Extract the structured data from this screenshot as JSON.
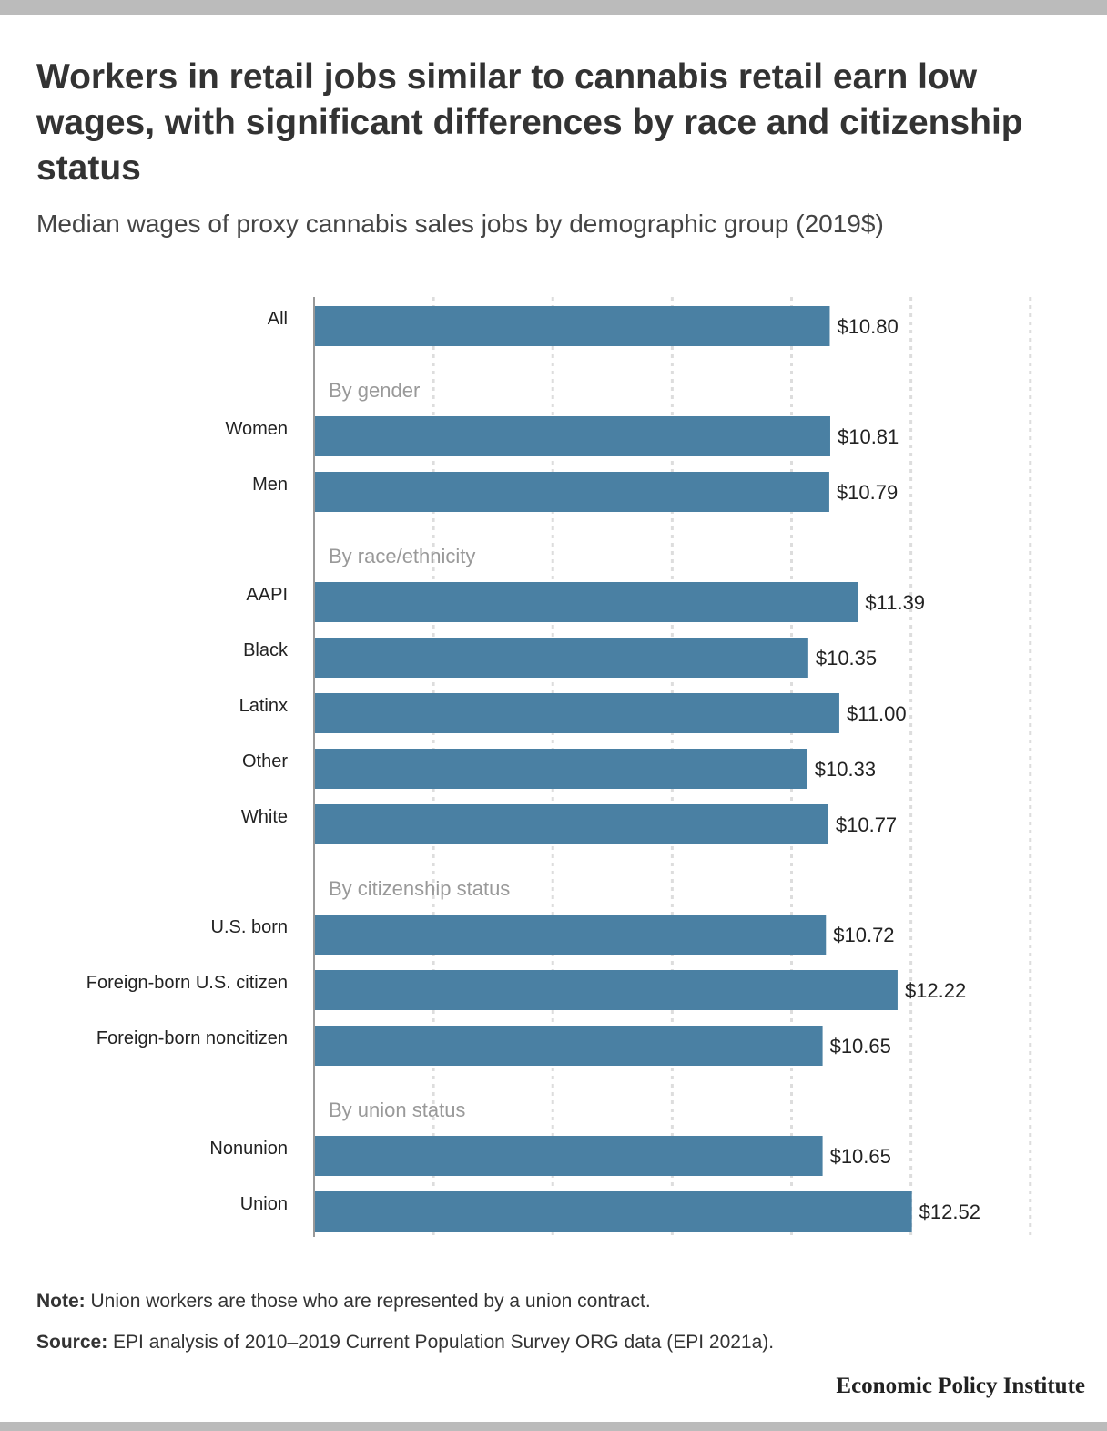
{
  "title": "Workers in retail jobs similar to cannabis retail earn low wages, with significant differences by race and citizenship status",
  "subtitle": "Median wages of proxy cannabis sales jobs by demographic group (2019$)",
  "note_label": "Note:",
  "note_text": " Union workers are those who are represented by a union contract.",
  "source_label": "Source:",
  "source_text": " EPI analysis of 2010–2019 Current Population Survey ORG data (EPI 2021a).",
  "brand": "Economic Policy Institute",
  "colors": {
    "bar": "#4a80a3",
    "group_label": "#999999",
    "grid": "#dddddd",
    "axis": "#999999"
  },
  "chart_data": {
    "type": "bar",
    "orientation": "horizontal",
    "title": "Workers in retail jobs similar to cannabis retail earn low wages, with significant differences by race and citizenship status",
    "subtitle": "Median wages of proxy cannabis sales jobs by demographic group (2019$)",
    "xlim": [
      0,
      15
    ],
    "grid": "vertical dotted",
    "legend": "none",
    "rows": [
      {
        "kind": "bar",
        "label": "All",
        "value": 10.8,
        "value_label": "$10.80"
      },
      {
        "kind": "group",
        "label": "By gender"
      },
      {
        "kind": "bar",
        "label": "Women",
        "value": 10.81,
        "value_label": "$10.81"
      },
      {
        "kind": "bar",
        "label": "Men",
        "value": 10.79,
        "value_label": "$10.79"
      },
      {
        "kind": "group",
        "label": "By race/ethnicity"
      },
      {
        "kind": "bar",
        "label": "AAPI",
        "value": 11.39,
        "value_label": "$11.39"
      },
      {
        "kind": "bar",
        "label": "Black",
        "value": 10.35,
        "value_label": "$10.35"
      },
      {
        "kind": "bar",
        "label": "Latinx",
        "value": 11.0,
        "value_label": "$11.00"
      },
      {
        "kind": "bar",
        "label": "Other",
        "value": 10.33,
        "value_label": "$10.33"
      },
      {
        "kind": "bar",
        "label": "White",
        "value": 10.77,
        "value_label": "$10.77"
      },
      {
        "kind": "group",
        "label": "By citizenship status"
      },
      {
        "kind": "bar",
        "label": "U.S. born",
        "value": 10.72,
        "value_label": "$10.72"
      },
      {
        "kind": "bar",
        "label": "Foreign-born U.S. citizen",
        "value": 12.22,
        "value_label": "$12.22"
      },
      {
        "kind": "bar",
        "label": "Foreign-born noncitizen",
        "value": 10.65,
        "value_label": "$10.65"
      },
      {
        "kind": "group",
        "label": "By union status"
      },
      {
        "kind": "bar",
        "label": "Nonunion",
        "value": 10.65,
        "value_label": "$10.65"
      },
      {
        "kind": "bar",
        "label": "Union",
        "value": 12.52,
        "value_label": "$12.52"
      }
    ]
  }
}
